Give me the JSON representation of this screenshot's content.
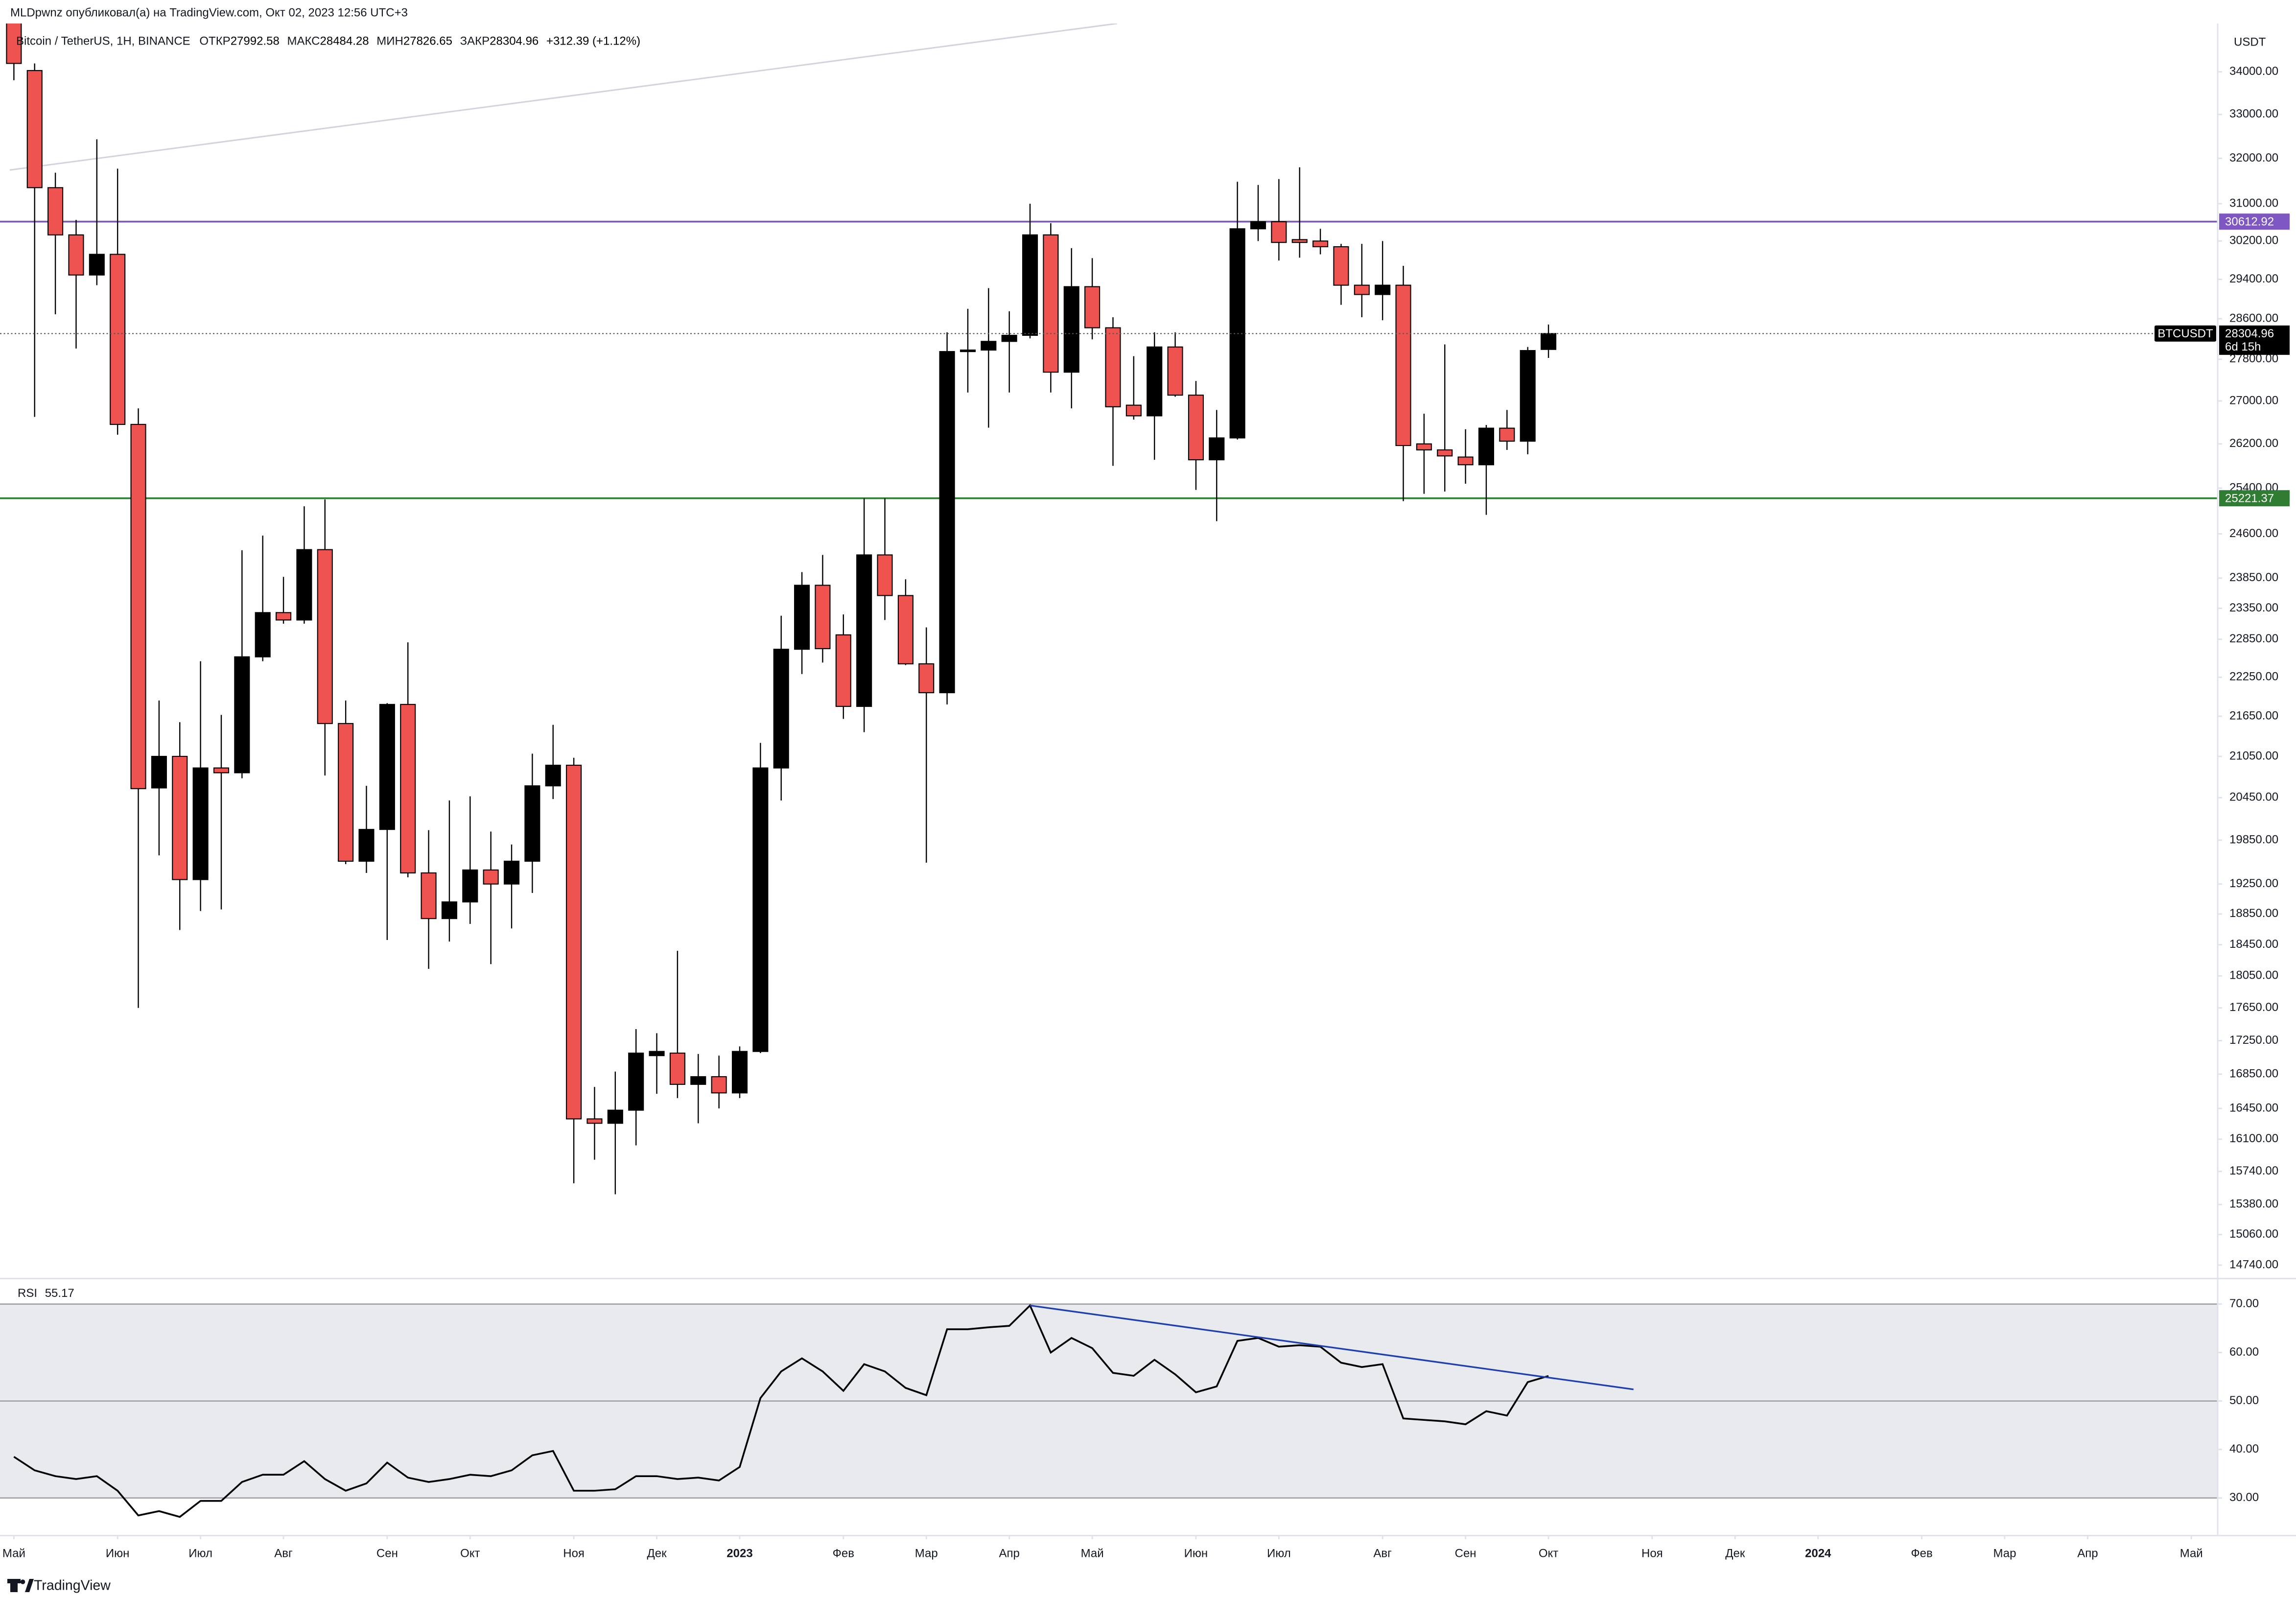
{
  "chart_data": {
    "type": "candlestick",
    "header": "MLDpwnz опубликовал(а) на TradingView.com, Окт 02, 2023 12:56 UTC+3",
    "title": "Bitcoin / TetherUS, 1H, BINANCE",
    "ohlc_labels": [
      "ОТКР",
      "МАКС",
      "МИН",
      "ЗАКР"
    ],
    "change_label": "+312.39 (+1.12%)",
    "axis_currency": "USDT",
    "symbol": "BTCUSDT",
    "countdown": "6d 15h",
    "up_color": "#000000",
    "down_color": "#ef5350",
    "open": [
      35600,
      34030,
      31350,
      30330,
      29490,
      29920,
      26560,
      20590,
      21050,
      19310,
      20880,
      20810,
      22570,
      23280,
      23160,
      24330,
      21540,
      19560,
      20000,
      21830,
      19400,
      18790,
      19010,
      19440,
      19250,
      19560,
      20620,
      20920,
      16330,
      16280,
      16430,
      17070,
      17100,
      16730,
      16820,
      16630,
      17120,
      20880,
      22690,
      23730,
      22920,
      21800,
      24240,
      23560,
      22460,
      22010,
      27950,
      27980,
      28150,
      28270,
      30330,
      27550,
      29250,
      28420,
      26920,
      26720,
      28040,
      27110,
      25910,
      26310,
      30460,
      30610,
      30230,
      30200,
      30080,
      29280,
      29090,
      29280,
      26200,
      26090,
      25960,
      25820,
      26490,
      26250,
      27992.58
    ],
    "high": [
      36000,
      34200,
      31680,
      30650,
      32430,
      31770,
      26860,
      21890,
      21560,
      22500,
      21670,
      24320,
      24570,
      23870,
      25080,
      25200,
      21890,
      20620,
      21850,
      22800,
      19990,
      20410,
      20470,
      19970,
      19790,
      21090,
      21520,
      21030,
      16700,
      16880,
      17390,
      17340,
      18370,
      17090,
      17070,
      17180,
      21250,
      23230,
      23950,
      24240,
      23250,
      25220,
      25220,
      23830,
      23040,
      28330,
      28800,
      29220,
      28750,
      31000,
      30580,
      30050,
      29840,
      28630,
      27860,
      28330,
      28330,
      27380,
      26830,
      31480,
      31410,
      31540,
      31800,
      30460,
      30140,
      30140,
      30200,
      29680,
      26760,
      28090,
      26470,
      26550,
      26830,
      28040,
      28484.28
    ],
    "low": [
      33800,
      26700,
      28690,
      28010,
      29280,
      26370,
      17650,
      19640,
      18640,
      18890,
      18910,
      20730,
      22500,
      23100,
      23100,
      20770,
      19520,
      19400,
      18510,
      19340,
      18140,
      18490,
      18720,
      18200,
      18660,
      19130,
      20430,
      15610,
      15870,
      15490,
      16030,
      16620,
      16570,
      16280,
      16450,
      16570,
      17100,
      20410,
      22300,
      22480,
      21610,
      21410,
      23160,
      22440,
      19540,
      21830,
      27160,
      26500,
      27160,
      28210,
      27160,
      26860,
      28190,
      25800,
      26650,
      25910,
      27080,
      25370,
      24820,
      26280,
      30200,
      29790,
      29850,
      29920,
      28880,
      28630,
      28570,
      25170,
      25300,
      25340,
      25480,
      24930,
      26090,
      26010,
      27826.65
    ],
    "close": [
      34200,
      31350,
      30330,
      29490,
      29920,
      26560,
      20580,
      21050,
      19310,
      20880,
      20810,
      22570,
      23280,
      23160,
      24330,
      21540,
      19560,
      20000,
      21830,
      19400,
      18790,
      19010,
      19440,
      19250,
      19560,
      20620,
      20920,
      16330,
      16280,
      16430,
      17100,
      17120,
      16730,
      16820,
      16630,
      17120,
      20880,
      22690,
      23730,
      22700,
      21800,
      24240,
      23560,
      22460,
      22010,
      27950,
      27980,
      28150,
      28270,
      30330,
      27550,
      29250,
      28420,
      26890,
      26720,
      28040,
      27110,
      25910,
      26310,
      30460,
      30610,
      30170,
      30170,
      30080,
      29280,
      29090,
      29280,
      26170,
      26090,
      25980,
      25820,
      26490,
      26250,
      27970,
      28304.96
    ],
    "log": true,
    "ylim": [
      14610,
      35170
    ],
    "yticks": [
      {
        "value": 34000,
        "label": "34000.00"
      },
      {
        "value": 33000,
        "label": "33000.00"
      },
      {
        "value": 32000,
        "label": "32000.00"
      },
      {
        "value": 31000,
        "label": "31000.00"
      },
      {
        "value": 30200,
        "label": "30200.00"
      },
      {
        "value": 29400,
        "label": "29400.00"
      },
      {
        "value": 28600,
        "label": "28600.00"
      },
      {
        "value": 27800,
        "label": "27800.00"
      },
      {
        "value": 27000,
        "label": "27000.00"
      },
      {
        "value": 26200,
        "label": "26200.00"
      },
      {
        "value": 25400,
        "label": "25400.00"
      },
      {
        "value": 24600,
        "label": "24600.00"
      },
      {
        "value": 23850,
        "label": "23850.00"
      },
      {
        "value": 23350,
        "label": "23350.00"
      },
      {
        "value": 22850,
        "label": "22850.00"
      },
      {
        "value": 22250,
        "label": "22250.00"
      },
      {
        "value": 21650,
        "label": "21650.00"
      },
      {
        "value": 21050,
        "label": "21050.00"
      },
      {
        "value": 20450,
        "label": "20450.00"
      },
      {
        "value": 19850,
        "label": "19850.00"
      },
      {
        "value": 19250,
        "label": "19250.00"
      },
      {
        "value": 18850,
        "label": "18850.00"
      },
      {
        "value": 18450,
        "label": "18450.00"
      },
      {
        "value": 18050,
        "label": "18050.00"
      },
      {
        "value": 17650,
        "label": "17650.00"
      },
      {
        "value": 17250,
        "label": "17250.00"
      },
      {
        "value": 16850,
        "label": "16850.00"
      },
      {
        "value": 16450,
        "label": "16450.00"
      },
      {
        "value": 16100,
        "label": "16100.00"
      },
      {
        "value": 15740,
        "label": "15740.00"
      },
      {
        "value": 15380,
        "label": "15380.00"
      },
      {
        "value": 15060,
        "label": "15060.00"
      },
      {
        "value": 14740,
        "label": "14740.00"
      }
    ],
    "xlim": [
      -0.67,
      106.27
    ],
    "xticks": [
      {
        "value": 0,
        "label": "Май"
      },
      {
        "value": 5,
        "label": "Июн"
      },
      {
        "value": 9,
        "label": "Июл"
      },
      {
        "value": 13,
        "label": "Авг"
      },
      {
        "value": 18,
        "label": "Сен"
      },
      {
        "value": 22,
        "label": "Окт"
      },
      {
        "value": 27,
        "label": "Ноя"
      },
      {
        "value": 31,
        "label": "Дек"
      },
      {
        "value": 35,
        "label": "2023"
      },
      {
        "value": 40,
        "label": "Фев"
      },
      {
        "value": 44,
        "label": "Мар"
      },
      {
        "value": 48,
        "label": "Апр"
      },
      {
        "value": 52,
        "label": "Май"
      },
      {
        "value": 57,
        "label": "Июн"
      },
      {
        "value": 61,
        "label": "Июл"
      },
      {
        "value": 66,
        "label": "Авг"
      },
      {
        "value": 70,
        "label": "Сен"
      },
      {
        "value": 74,
        "label": "Окт"
      },
      {
        "value": 79,
        "label": "Ноя"
      },
      {
        "value": 83,
        "label": "Дек"
      },
      {
        "value": 87,
        "label": "2024"
      },
      {
        "value": 92,
        "label": "Фев"
      },
      {
        "value": 96,
        "label": "Мар"
      },
      {
        "value": 100,
        "label": "Апр"
      },
      {
        "value": 105,
        "label": "Май"
      }
    ],
    "hlines": [
      {
        "value": 30612.92,
        "color": "#7e57c2"
      },
      {
        "value": 25221.37,
        "color": "#2e7d32"
      }
    ],
    "trendline": {
      "x": [
        -0.2,
        53.2
      ],
      "y": [
        31740,
        35170
      ],
      "color": "#d1d4dc"
    },
    "rsi": {
      "name": "RSI",
      "color": "#000000",
      "values": [
        38.5,
        35.7,
        34.5,
        33.9,
        34.5,
        31.5,
        26.4,
        27.3,
        26.1,
        29.4,
        29.4,
        33.3,
        34.8,
        34.8,
        37.6,
        33.9,
        31.5,
        33.0,
        37.3,
        34.2,
        33.3,
        33.9,
        34.8,
        34.5,
        35.7,
        38.8,
        39.7,
        31.5,
        31.5,
        31.8,
        34.5,
        34.5,
        33.9,
        34.2,
        33.6,
        36.4,
        50.6,
        56.1,
        58.8,
        56.1,
        52.1,
        57.6,
        56.1,
        52.7,
        51.2,
        64.8,
        64.8,
        65.2,
        65.5,
        69.7,
        60.0,
        63.0,
        60.9,
        55.8,
        55.2,
        58.5,
        55.5,
        51.8,
        53.0,
        62.4,
        63.0,
        61.2,
        61.5,
        61.2,
        57.9,
        57.0,
        57.6,
        46.4,
        46.1,
        45.8,
        45.2,
        47.9,
        47.0,
        53.9,
        55.17
      ],
      "ylim": [
        22.4,
        74.8
      ],
      "yticks": [
        {
          "value": 70,
          "label": "70.00"
        },
        {
          "value": 60,
          "label": "60.00"
        },
        {
          "value": 50,
          "label": "50.00"
        },
        {
          "value": 40,
          "label": "40.00"
        },
        {
          "value": 30,
          "label": "30.00"
        }
      ],
      "band": [
        30,
        70
      ],
      "levels": [
        30,
        50,
        70
      ],
      "trendline": {
        "x": [
          49,
          78.1
        ],
        "y": [
          69.7,
          52.4
        ],
        "color": "#1e3fae"
      }
    }
  },
  "footer": "TradingView"
}
